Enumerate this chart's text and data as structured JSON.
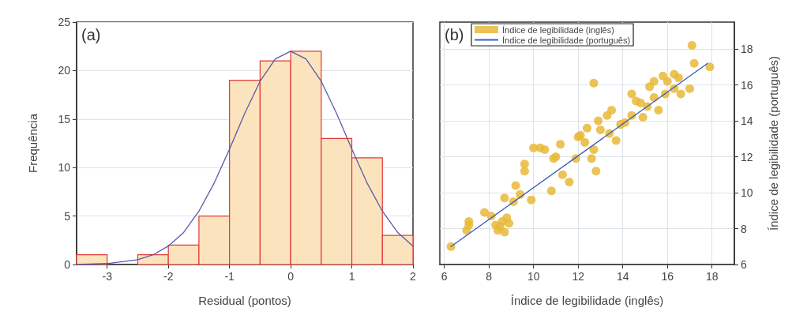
{
  "chart_data": [
    {
      "type": "histogram",
      "xlabel": "Residual (pontos)",
      "ylabel": "Frequência",
      "annotations": [
        "(a)"
      ],
      "bins": [
        -3.5,
        -3,
        -2.5,
        -2,
        -1.5,
        -1,
        -0.5,
        0,
        0.5,
        1,
        1.5,
        2
      ],
      "series": [
        {
          "color": "#fbe3bd",
          "values": [
            1,
            0,
            1,
            2,
            5,
            19,
            21,
            22,
            13,
            11,
            3
          ]
        },
        {
          "type": "line",
          "color": "#5a5aa8",
          "x": [
            -3.5,
            -3,
            -2.5,
            -2.25,
            -2,
            -1.75,
            -1.5,
            -1.25,
            -1,
            -0.75,
            -0.5,
            -0.25,
            0,
            0.25,
            0.5,
            0.75,
            1,
            1.25,
            1.5,
            1.75,
            2
          ],
          "values": [
            0,
            0.1,
            0.5,
            1,
            1.9,
            3.3,
            5.5,
            8.4,
            11.9,
            15.6,
            18.9,
            21.2,
            22,
            21.2,
            18.9,
            15.6,
            11.9,
            8.4,
            5.5,
            3.3,
            1.9
          ]
        }
      ],
      "xlim": [
        -3.5,
        2
      ],
      "xticks": [
        -3,
        -2,
        -1,
        0,
        1,
        2
      ],
      "ylim": [
        0,
        25
      ],
      "yticks": [
        0,
        5,
        10,
        15,
        20,
        25
      ],
      "grid": "y",
      "line_style": "solid"
    },
    {
      "type": "scatter",
      "xlabel": "Índice de legibilidade (inglês)",
      "ylabel": "Índice de legibilidade (português)",
      "annotations": [
        "(b)"
      ],
      "series": [
        {
          "name": "Índice de legibilidade (inglês)",
          "color": "#e8b838",
          "x": [
            6.3,
            7.1,
            7.0,
            7.8,
            8.3,
            8.6,
            8.7,
            8.4,
            8.8,
            8.5,
            8.9,
            8.7,
            9.1,
            9.2,
            9.6,
            9.6,
            9.9,
            10.0,
            10.3,
            10.8,
            10.9,
            11.2,
            11.3,
            11.6,
            11.9,
            12.0,
            12.1,
            12.4,
            12.6,
            12.7,
            12.8,
            12.7,
            12.9,
            13.3,
            13.4,
            13.7,
            13.9,
            14.1,
            14.4,
            14.4,
            14.6,
            14.9,
            15.2,
            15.4,
            15.8,
            16.0,
            16.3,
            15.6,
            15.4,
            15.9,
            16.3,
            16.6,
            17.0,
            17.1,
            17.2,
            17.9,
            9.4,
            10.5,
            11.0,
            12.3,
            13.0,
            13.5,
            14.8,
            15.1,
            16.5,
            8.1,
            7.1
          ],
          "values": [
            7.0,
            8.4,
            7.9,
            8.9,
            8.2,
            8.4,
            7.8,
            7.9,
            8.6,
            8.1,
            8.3,
            9.7,
            9.5,
            10.4,
            11.2,
            11.6,
            9.6,
            12.5,
            12.5,
            10.1,
            11.9,
            12.7,
            11.0,
            10.6,
            11.9,
            13.1,
            13.2,
            13.6,
            11.9,
            16.1,
            11.2,
            12.4,
            14.0,
            14.3,
            13.3,
            12.9,
            13.8,
            13.9,
            14.3,
            15.5,
            15.1,
            14.2,
            15.9,
            16.2,
            16.5,
            16.2,
            16.6,
            14.6,
            15.3,
            15.5,
            15.8,
            15.5,
            15.8,
            18.2,
            17.2,
            17.0,
            9.9,
            12.4,
            12.0,
            12.8,
            13.5,
            14.6,
            15.0,
            14.8,
            16.4,
            8.7,
            8.2
          ]
        },
        {
          "type": "line",
          "name": "Índice de legibilidade (português)",
          "color": "#3a5ab8",
          "x": [
            6.3,
            17.8
          ],
          "values": [
            7.0,
            17.2
          ],
          "line_style": "solid",
          "marker": "none"
        }
      ],
      "xlim": [
        5.8,
        19
      ],
      "xticks": [
        6,
        8,
        10,
        12,
        14,
        16,
        18
      ],
      "ylim": [
        6,
        19.5
      ],
      "yticks": [
        6,
        8,
        10,
        12,
        14,
        16,
        18
      ],
      "grid": true,
      "legend": "top left",
      "marker": "circle"
    }
  ]
}
